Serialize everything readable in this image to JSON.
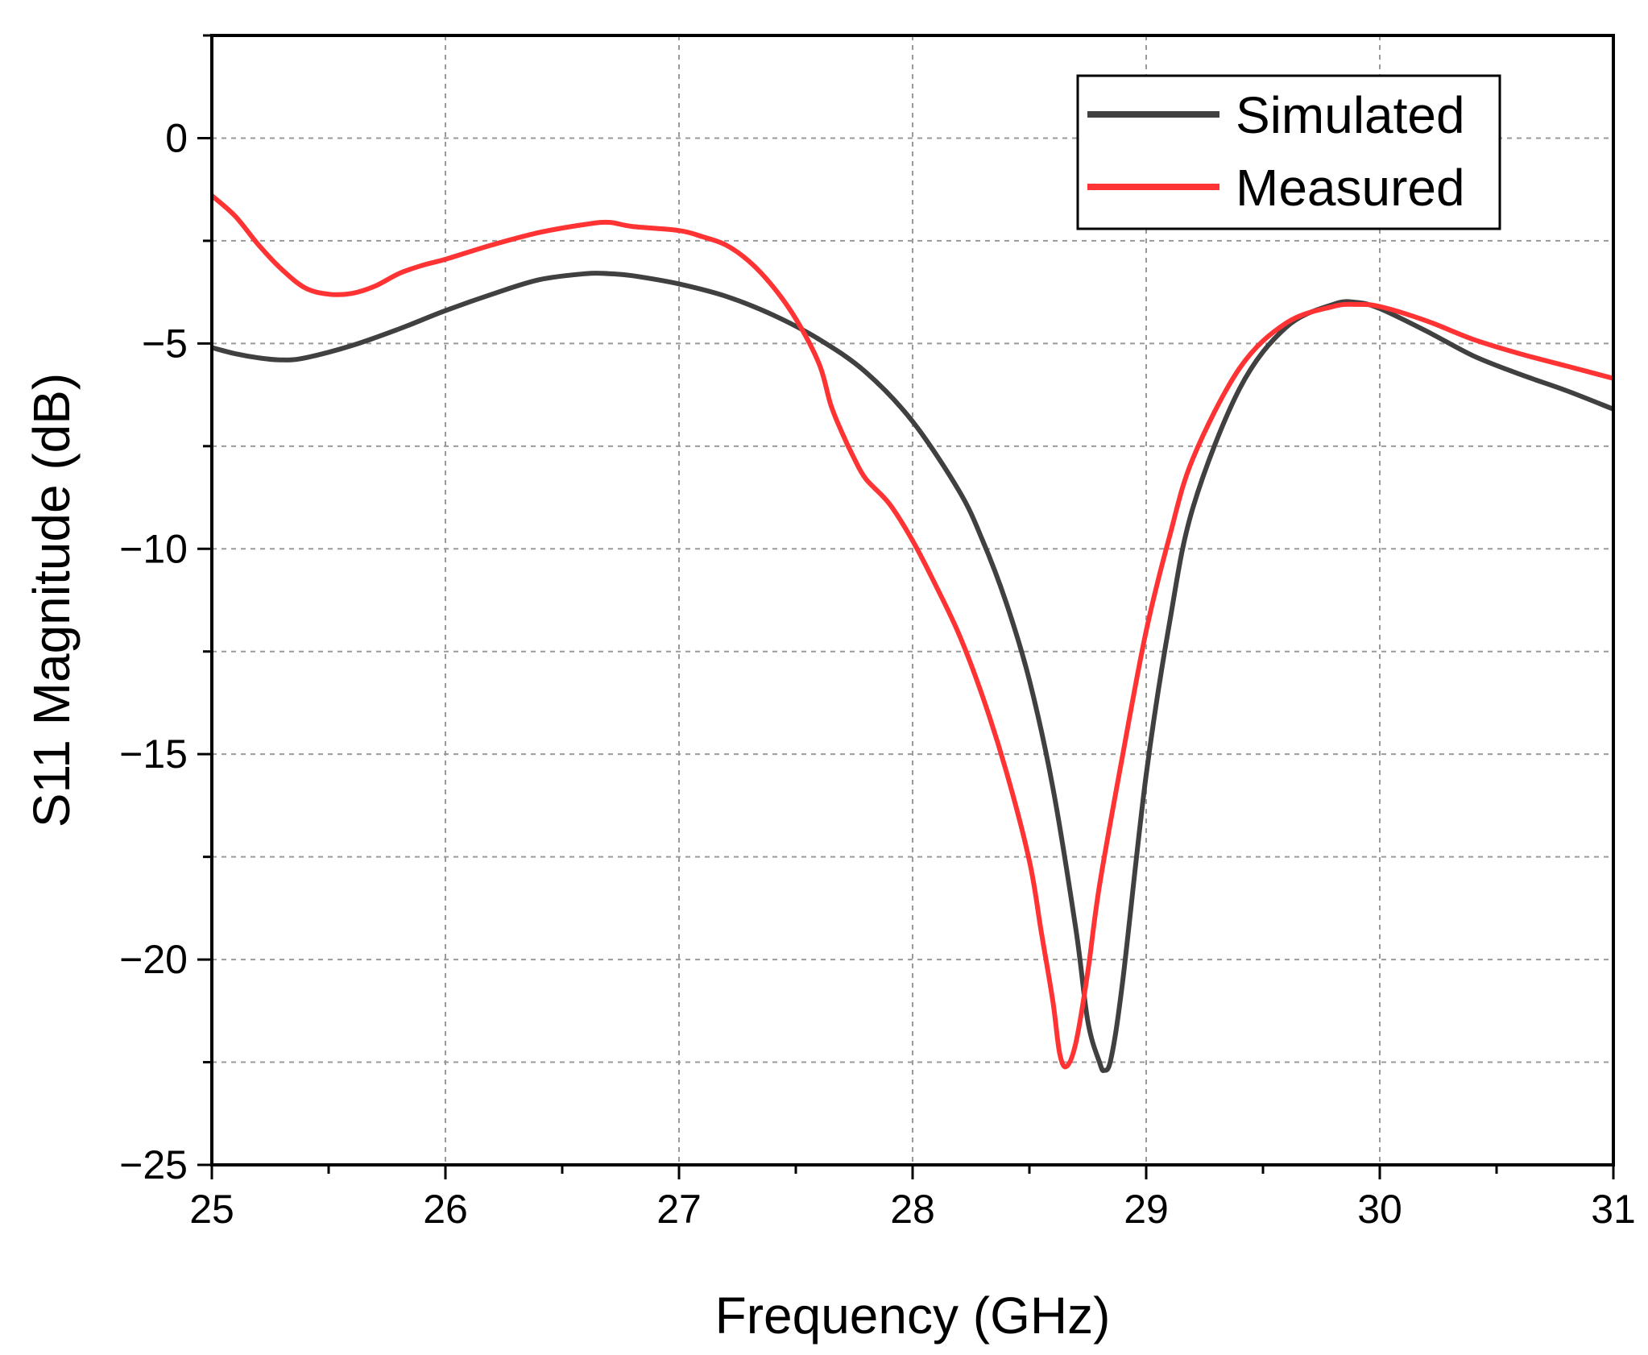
{
  "chart_data": {
    "type": "line",
    "title": "",
    "xlabel": "Frequency (GHz)",
    "ylabel": "S11 Magnitude (dB)",
    "xlim": [
      25,
      31
    ],
    "ylim": [
      -25,
      2.5
    ],
    "x_ticks": [
      25,
      26,
      27,
      28,
      29,
      30,
      31
    ],
    "y_ticks": [
      0,
      -5,
      -10,
      -15,
      -20,
      -25
    ],
    "x_tick_labels": [
      "25",
      "26",
      "27",
      "28",
      "29",
      "30",
      "31"
    ],
    "y_tick_labels": [
      "0",
      "−5",
      "−10",
      "−15",
      "−20",
      "−25"
    ],
    "grid": true,
    "legend_position": "top-right",
    "series": [
      {
        "name": "Simulated",
        "color": "#404040",
        "x": [
          25.0,
          25.1,
          25.2,
          25.3,
          25.4,
          25.6,
          25.8,
          26.0,
          26.2,
          26.4,
          26.6,
          26.7,
          26.8,
          27.0,
          27.2,
          27.4,
          27.6,
          27.8,
          28.0,
          28.2,
          28.3,
          28.4,
          28.5,
          28.6,
          28.7,
          28.75,
          28.8,
          28.82,
          28.85,
          28.9,
          29.0,
          29.1,
          29.2,
          29.4,
          29.6,
          29.8,
          29.9,
          30.0,
          30.2,
          30.4,
          30.6,
          30.8,
          31.0
        ],
        "y": [
          -5.1,
          -5.25,
          -5.35,
          -5.4,
          -5.35,
          -5.05,
          -4.65,
          -4.2,
          -3.8,
          -3.45,
          -3.3,
          -3.3,
          -3.35,
          -3.55,
          -3.85,
          -4.3,
          -4.9,
          -5.7,
          -6.9,
          -8.6,
          -9.8,
          -11.3,
          -13.2,
          -15.8,
          -19.3,
          -21.5,
          -22.5,
          -22.7,
          -22.4,
          -20.5,
          -15.5,
          -11.8,
          -9.0,
          -6.1,
          -4.6,
          -4.05,
          -4.0,
          -4.15,
          -4.7,
          -5.3,
          -5.75,
          -6.15,
          -6.6
        ]
      },
      {
        "name": "Measured",
        "color": "#ff3333",
        "x": [
          25.0,
          25.1,
          25.2,
          25.3,
          25.4,
          25.5,
          25.6,
          25.7,
          25.8,
          25.9,
          26.0,
          26.2,
          26.4,
          26.6,
          26.7,
          26.8,
          27.0,
          27.1,
          27.2,
          27.3,
          27.4,
          27.5,
          27.6,
          27.65,
          27.7,
          27.75,
          27.8,
          27.9,
          28.0,
          28.1,
          28.2,
          28.3,
          28.4,
          28.5,
          28.55,
          28.6,
          28.63,
          28.66,
          28.7,
          28.75,
          28.8,
          28.9,
          29.0,
          29.1,
          29.2,
          29.4,
          29.6,
          29.8,
          29.9,
          30.0,
          30.2,
          30.4,
          30.6,
          30.8,
          31.0
        ],
        "y": [
          -1.4,
          -1.9,
          -2.6,
          -3.2,
          -3.65,
          -3.8,
          -3.78,
          -3.6,
          -3.3,
          -3.1,
          -2.95,
          -2.6,
          -2.3,
          -2.1,
          -2.05,
          -2.15,
          -2.25,
          -2.4,
          -2.6,
          -3.0,
          -3.6,
          -4.4,
          -5.5,
          -6.5,
          -7.2,
          -7.8,
          -8.3,
          -8.9,
          -9.8,
          -10.9,
          -12.1,
          -13.6,
          -15.4,
          -17.6,
          -19.3,
          -21.0,
          -22.3,
          -22.6,
          -22.0,
          -20.3,
          -18.2,
          -15.0,
          -12.0,
          -9.7,
          -7.8,
          -5.6,
          -4.5,
          -4.1,
          -4.05,
          -4.1,
          -4.45,
          -4.9,
          -5.25,
          -5.55,
          -5.85
        ]
      }
    ]
  }
}
